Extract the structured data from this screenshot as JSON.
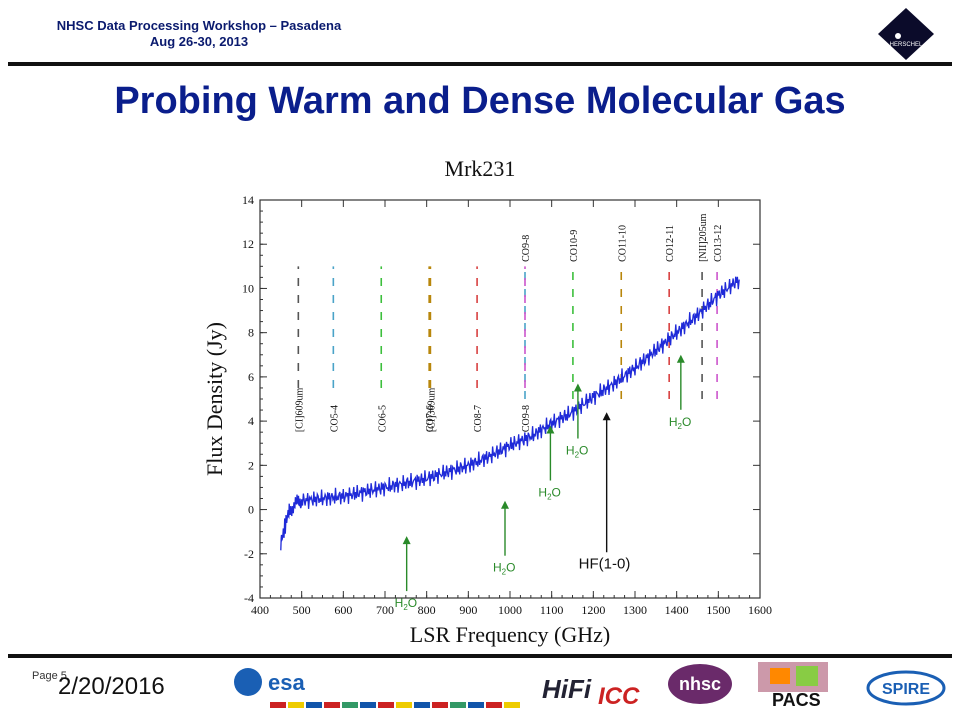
{
  "header": {
    "line1": "NHSC Data Processing Workshop – Pasadena",
    "line2": "Aug 26-30, 2013",
    "logo_text": "HERSCHEL"
  },
  "slide_title": "Probing Warm and Dense Molecular Gas",
  "footer": {
    "page_label": "Page 5",
    "date": "2/20/2016",
    "page_number": "5",
    "logos": {
      "esa": "esa",
      "hifi": "HiFi",
      "icc": "ICC",
      "nhsc": "nhsc",
      "pacs": "PACS",
      "spire": "SPIRE"
    }
  },
  "chart_data": {
    "type": "line",
    "title": "Mrk231",
    "xlabel": "LSR Frequency (GHz)",
    "ylabel": "Flux Density (Jy)",
    "xlim": [
      400,
      1600
    ],
    "ylim": [
      -4,
      14
    ],
    "x_ticks": [
      400,
      500,
      600,
      700,
      800,
      900,
      1000,
      1100,
      1200,
      1300,
      1400,
      1500,
      1600
    ],
    "y_ticks": [
      -4,
      -2,
      0,
      2,
      4,
      6,
      8,
      10,
      12,
      14
    ],
    "series": [
      {
        "color": "#1f2ad8",
        "x": [
          450,
          470,
          500,
          550,
          600,
          650,
          700,
          750,
          800,
          850,
          900,
          950,
          1000,
          1050,
          1100,
          1150,
          1200,
          1250,
          1300,
          1350,
          1400,
          1450,
          1500,
          1550
        ],
        "y": [
          -1.5,
          0.0,
          0.4,
          0.5,
          0.6,
          0.8,
          1.0,
          1.2,
          1.4,
          1.7,
          2.0,
          2.4,
          2.9,
          3.3,
          3.9,
          4.4,
          5.1,
          5.7,
          6.4,
          7.2,
          8.0,
          8.8,
          9.7,
          10.4
        ]
      }
    ],
    "line_markers": [
      {
        "label": "[CI]609um",
        "x": 492,
        "color": "#555555",
        "label_pos": "bottom"
      },
      {
        "label": "CO5-4",
        "x": 576,
        "color": "#4aa3c8",
        "label_pos": "bottom"
      },
      {
        "label": "CO6-5",
        "x": 691,
        "color": "#3cbf3c",
        "label_pos": "bottom"
      },
      {
        "label": "[CI]369um",
        "x": 809,
        "color": "#b8860b",
        "label_pos": "bottom"
      },
      {
        "label": "CO7-6",
        "x": 806,
        "color": "#b8860b",
        "label_pos": "bottom"
      },
      {
        "label": "CO8-7",
        "x": 921,
        "color": "#d84040",
        "label_pos": "bottom"
      },
      {
        "label": "CO9-8",
        "x": 1036,
        "color": "#4aa3c8",
        "label_pos": "top"
      },
      {
        "label": "CO9-8",
        "x": 1036,
        "color": "#cc55cc",
        "label_pos": "bottom"
      },
      {
        "label": "CO10-9",
        "x": 1151,
        "color": "#3cbf3c",
        "label_pos": "top"
      },
      {
        "label": "CO11-10",
        "x": 1267,
        "color": "#b8860b",
        "label_pos": "top"
      },
      {
        "label": "CO12-11",
        "x": 1382,
        "color": "#d84040",
        "label_pos": "top"
      },
      {
        "label": "[NII]205um",
        "x": 1461,
        "color": "#555555",
        "label_pos": "top"
      },
      {
        "label": "CO13-12",
        "x": 1497,
        "color": "#cc55cc",
        "label_pos": "top"
      }
    ],
    "annotations": [
      {
        "label": "H2O",
        "x": 752,
        "y": -1.2
      },
      {
        "label": "H2O",
        "x": 988,
        "y": 0.4
      },
      {
        "label": "H2O",
        "x": 1097,
        "y": 3.8
      },
      {
        "label": "H2O",
        "x": 1163,
        "y": 5.7
      },
      {
        "label": "HF(1-0)",
        "x": 1232,
        "y": 4.4
      },
      {
        "label": "H2O",
        "x": 1410,
        "y": 7.0
      }
    ]
  }
}
